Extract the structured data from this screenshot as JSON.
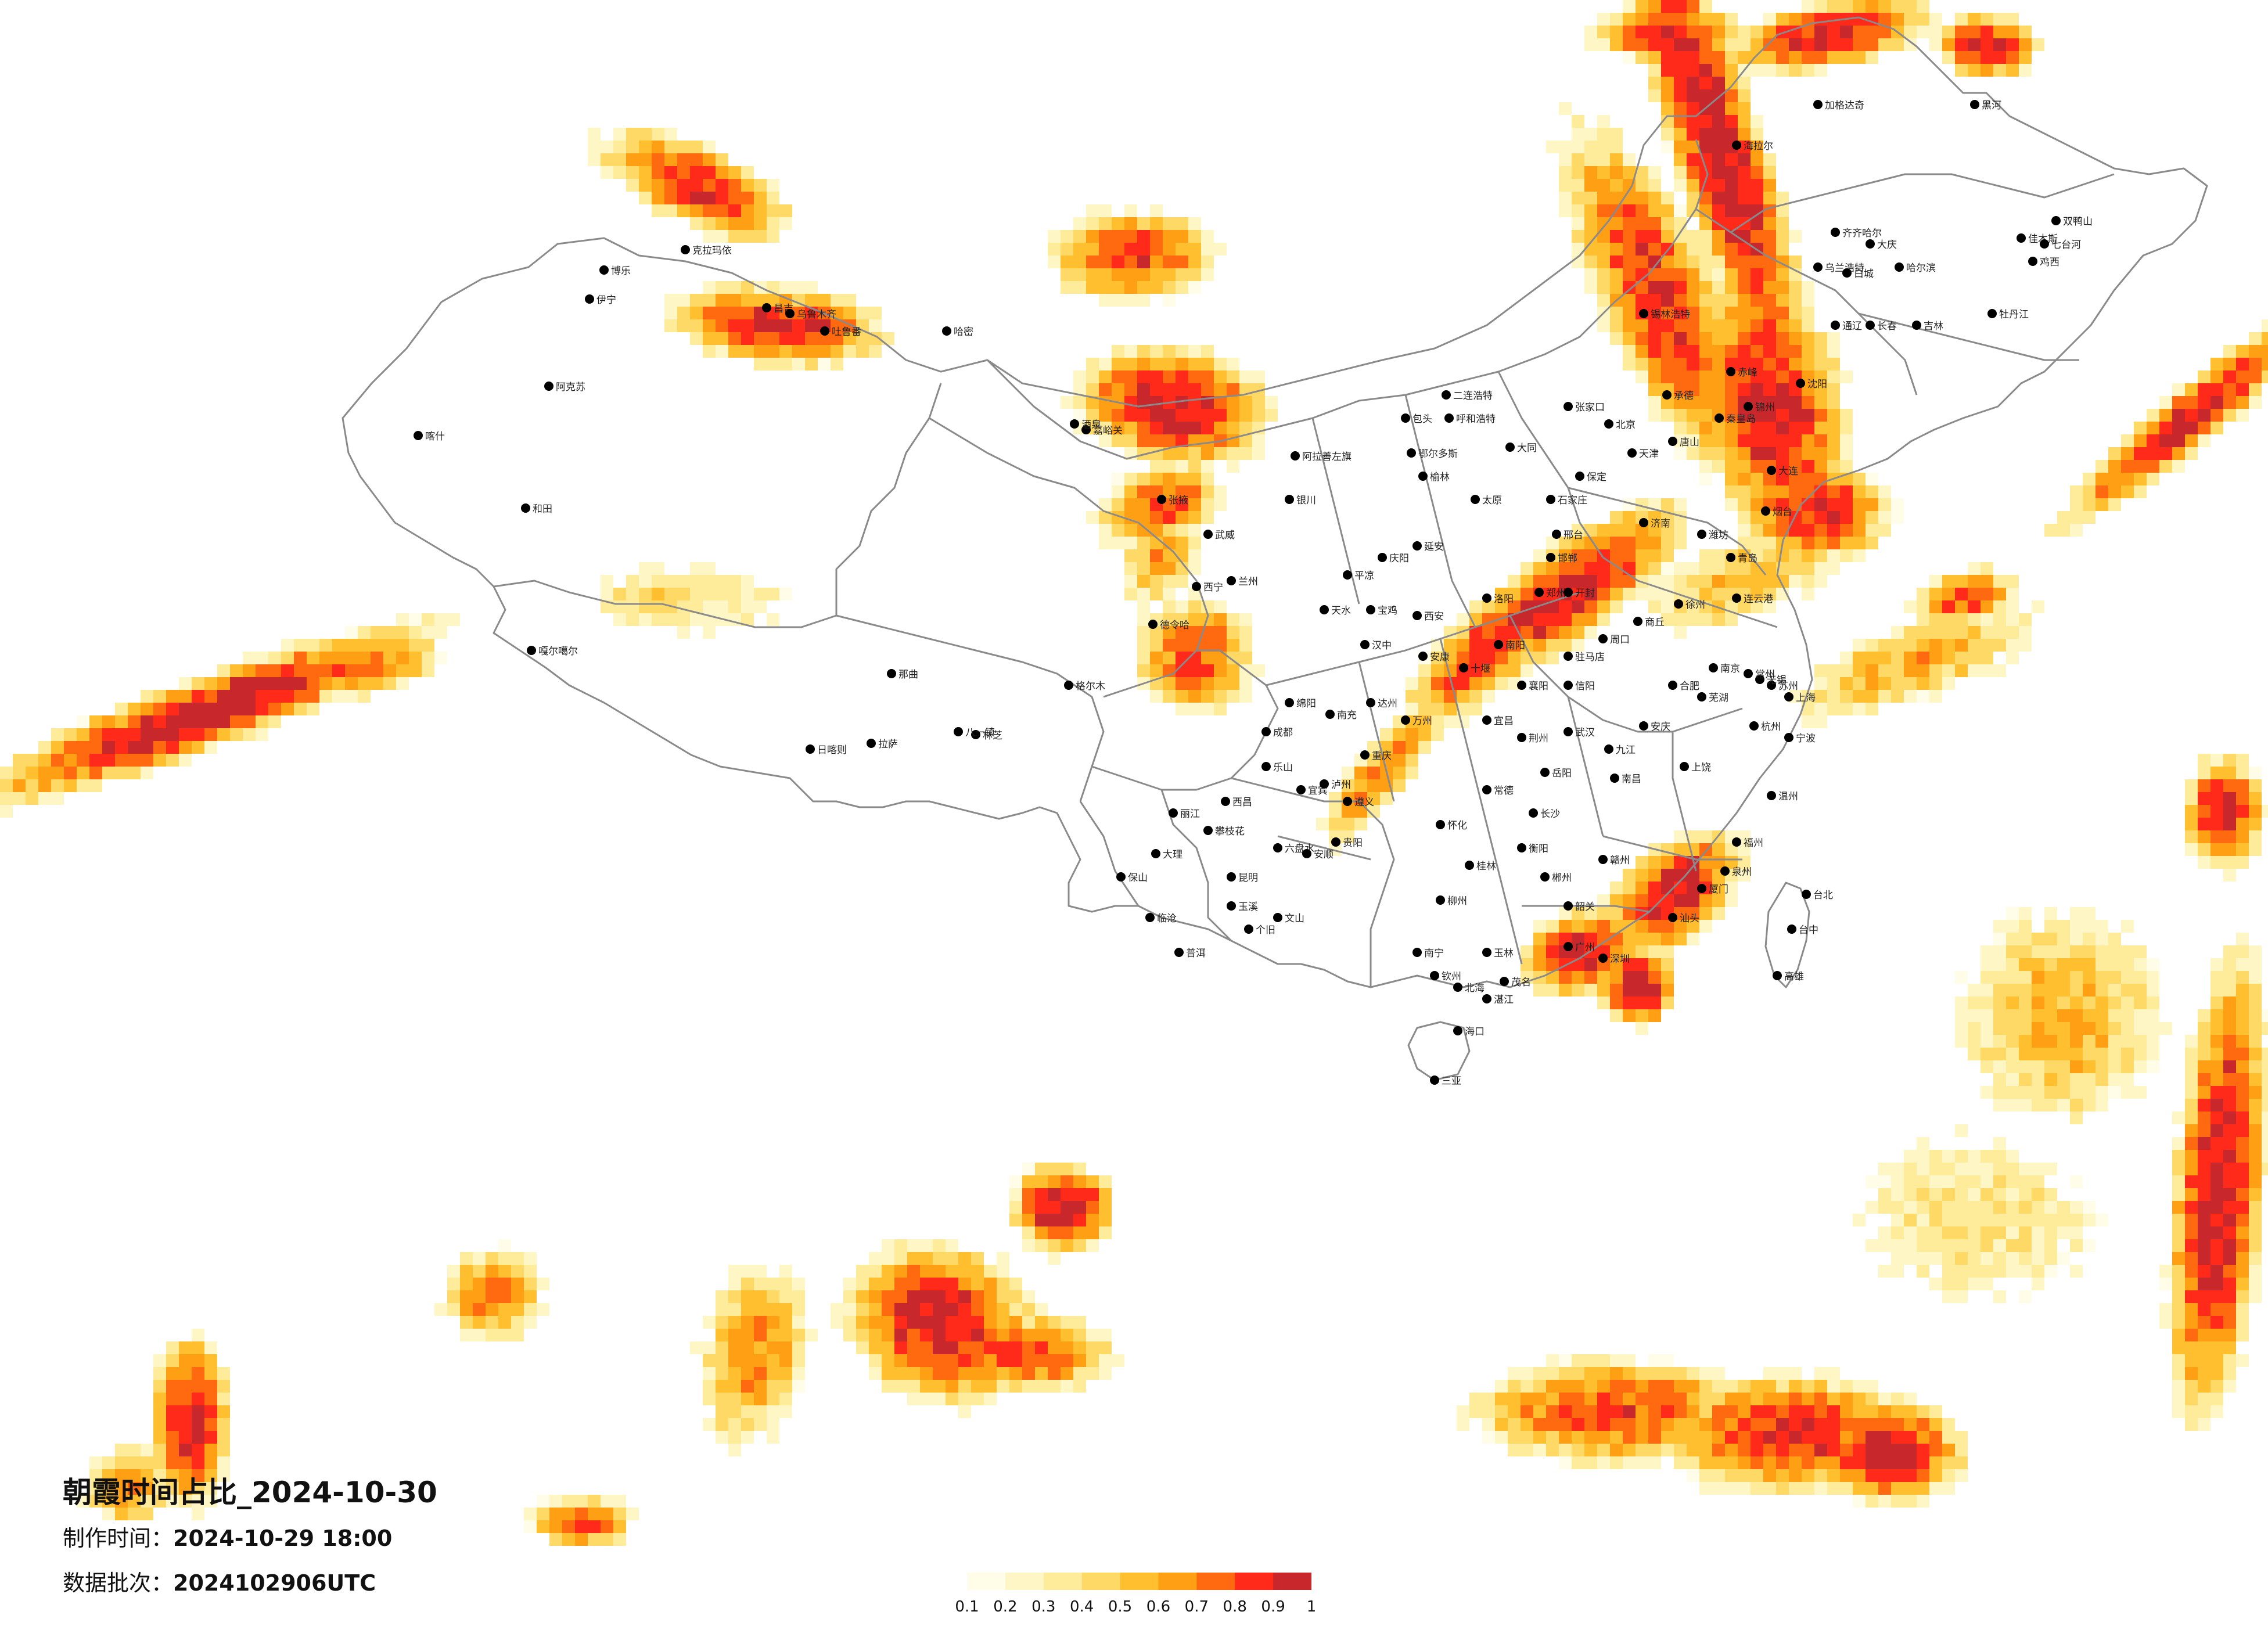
{
  "title": "朝霞时间占比_2024-10-30",
  "made_label": "制作时间：",
  "made_value": "2024-10-29 18:00",
  "batch_label": "数据批次：",
  "batch_value": "2024102906UTC",
  "legend": {
    "ticks": [
      "0.1",
      "0.2",
      "0.3",
      "0.4",
      "0.5",
      "0.6",
      "0.7",
      "0.8",
      "0.9",
      "1"
    ],
    "colors": [
      "#fffde8",
      "#fff6c6",
      "#ffec9a",
      "#ffd966",
      "#ffbf2f",
      "#ff9f14",
      "#ff6a10",
      "#ff2a1a",
      "#c8272c"
    ]
  },
  "map": {
    "background": "#ffffff",
    "border_color": "#8a8a8a",
    "city_marker_color": "#000000"
  },
  "cities": [
    "伊宁",
    "博乐",
    "克拉玛依",
    "昌吉",
    "乌鲁木齐",
    "吐鲁番",
    "哈密",
    "阿克苏",
    "喀什",
    "和田",
    "嘎尔噶尔",
    "拉萨",
    "日喀则",
    "林芝",
    "八一镇",
    "那曲",
    "格尔木",
    "德令哈",
    "西宁",
    "兰州",
    "银川",
    "嘉峪关",
    "张掖",
    "武威",
    "酒泉",
    "阿拉善左旗",
    "呼和浩特",
    "包头",
    "鄂尔多斯",
    "榆林",
    "延安",
    "太原",
    "大同",
    "石家庄",
    "北京",
    "天津",
    "唐山",
    "秦皇岛",
    "沈阳",
    "大连",
    "锦州",
    "长春",
    "吉林",
    "哈尔滨",
    "齐齐哈尔",
    "大庆",
    "牡丹江",
    "佳木斯",
    "鸡西",
    "七台河",
    "双鸭山",
    "海拉尔",
    "加格达奇",
    "黑河",
    "乌兰浩特",
    "白城",
    "通辽",
    "赤峰",
    "锡林浩特",
    "二连浩特",
    "张家口",
    "承德",
    "保定",
    "邢台",
    "邯郸",
    "济南",
    "青岛",
    "烟台",
    "潍坊",
    "郑州",
    "洛阳",
    "开封",
    "南阳",
    "信阳",
    "驻马店",
    "周口",
    "商丘",
    "徐州",
    "连云港",
    "南京",
    "苏州",
    "无锡",
    "常州",
    "上海",
    "杭州",
    "宁波",
    "温州",
    "合肥",
    "芜湖",
    "安庆",
    "武汉",
    "宜昌",
    "襄阳",
    "十堰",
    "荆州",
    "长沙",
    "岳阳",
    "常德",
    "衡阳",
    "郴州",
    "怀化",
    "南昌",
    "九江",
    "赣州",
    "上饶",
    "福州",
    "厦门",
    "泉州",
    "广州",
    "深圳",
    "汕头",
    "韶关",
    "湛江",
    "茂名",
    "南宁",
    "桂林",
    "柳州",
    "玉林",
    "钦州",
    "北海",
    "海口",
    "三亚",
    "贵阳",
    "遵义",
    "六盘水",
    "安顺",
    "昆明",
    "大理",
    "丽江",
    "保山",
    "临沧",
    "普洱",
    "玉溪",
    "个旧",
    "文山",
    "西昌",
    "攀枝花",
    "成都",
    "绵阳",
    "乐山",
    "宜宾",
    "泸州",
    "南充",
    "达州",
    "重庆",
    "万州",
    "西安",
    "宝鸡",
    "汉中",
    "安康",
    "天水",
    "平凉",
    "庆阳",
    "台北",
    "台中",
    "高雄"
  ]
}
